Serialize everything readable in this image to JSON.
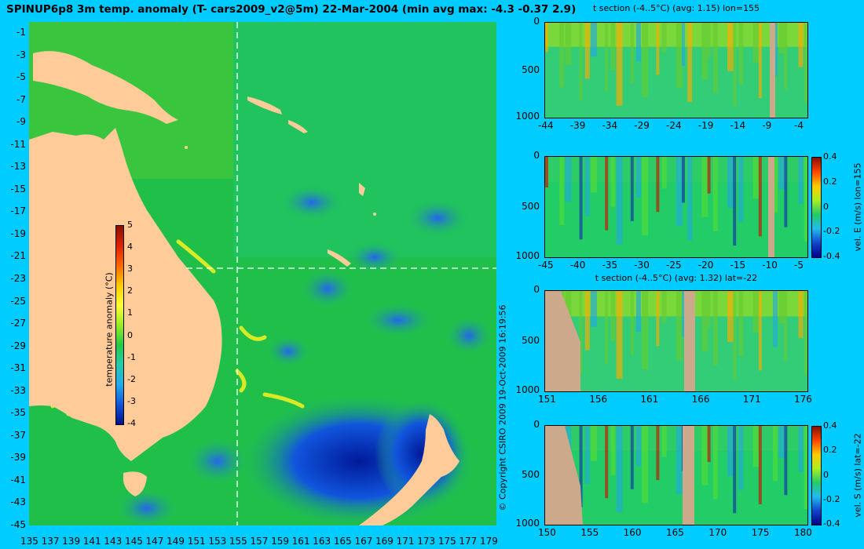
{
  "map": {
    "title": "SPINUP6p8 3m temp. anomaly (T- cars2009_v2@5m) 22-Mar-2004 (min avg max: -4.3 -0.37 2.9)",
    "lat_ticks": [
      "-1",
      "-3",
      "-5",
      "-7",
      "-9",
      "-11",
      "-13",
      "-15",
      "-17",
      "-19",
      "-21",
      "-23",
      "-25",
      "-27",
      "-29",
      "-31",
      "-33",
      "-35",
      "-37",
      "-39",
      "-41",
      "-43",
      "-45"
    ],
    "lon_ticks": [
      "135",
      "137",
      "139",
      "141",
      "143",
      "145",
      "147",
      "149",
      "151",
      "153",
      "155",
      "157",
      "159",
      "161",
      "163",
      "165",
      "167",
      "169",
      "171",
      "173",
      "175",
      "177",
      "179"
    ],
    "section_lon": "155",
    "section_lat": "-22",
    "colorbar": {
      "label": "temperature anomaly (°C)",
      "ticks": [
        "5",
        "4",
        "3",
        "2",
        "1",
        "0",
        "-1",
        "-2",
        "-3",
        "-4"
      ]
    },
    "copyright": "© Copyright CSIRO 2009   19-Oct-2009 16:19:56"
  },
  "panels": [
    {
      "title": "t section (-4..5°C) (avg: 1.15) lon=155",
      "y_ticks": [
        "0",
        "500",
        "1000"
      ],
      "x_ticks": [
        "-44",
        "-39",
        "-34",
        "-29",
        "-24",
        "-19",
        "-14",
        "-9",
        "-4"
      ]
    },
    {
      "title": "",
      "y_ticks": [
        "0",
        "500",
        "1000"
      ],
      "x_ticks": [
        "-45",
        "-40",
        "-35",
        "-30",
        "-25",
        "-20",
        "-15",
        "-10",
        "-5"
      ],
      "colorbar_label": "vel. E (m/s) lon=155",
      "colorbar_ticks": [
        "0.4",
        "0.2",
        "0",
        "-0.2",
        "-0.4"
      ]
    },
    {
      "title": "t section (-4..5°C) (avg: 1.32) lat=-22",
      "y_ticks": [
        "0",
        "500",
        "1000"
      ],
      "x_ticks": [
        "151",
        "156",
        "161",
        "166",
        "171",
        "176"
      ]
    },
    {
      "title": "",
      "y_ticks": [
        "0",
        "500",
        "1000"
      ],
      "x_ticks": [
        "150",
        "155",
        "160",
        "165",
        "170",
        "175",
        "180"
      ],
      "colorbar_label": "vel. S (m/s) lat=-22",
      "colorbar_ticks": [
        "0.4",
        "0.2",
        "0",
        "-0.2",
        "-0.4"
      ]
    }
  ],
  "colors": {
    "background": "#00ccff",
    "land": "#ffcc99",
    "ocean_base": "#22bb44",
    "cold": "#1144cc",
    "warm": "#eeee22"
  }
}
